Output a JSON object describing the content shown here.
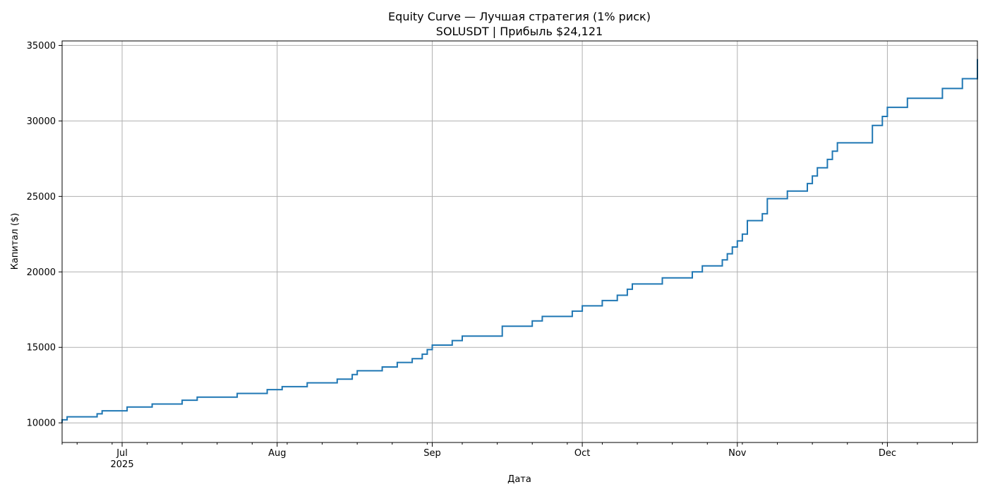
{
  "chart_data": {
    "type": "line",
    "title": "Equity Curve — Лучшая стратегия (1% риск)",
    "subtitle": "SOLUSDT | Прибыль $24,121",
    "xlabel": "Дата",
    "ylabel": "Капитал ($)",
    "xlim": [
      "2025-06-19",
      "2025-12-19"
    ],
    "ylim": [
      8700,
      35300
    ],
    "grid": true,
    "line_color": "#1f77b4",
    "y_ticks": [
      10000,
      15000,
      20000,
      25000,
      30000,
      35000
    ],
    "y_tick_labels": [
      "10000",
      "15000",
      "20000",
      "25000",
      "30000",
      "35000"
    ],
    "x_ticks": [
      {
        "date": "2025-07-01",
        "label": "Jul",
        "sublabel": "2025"
      },
      {
        "date": "2025-08-01",
        "label": "Aug",
        "sublabel": ""
      },
      {
        "date": "2025-09-01",
        "label": "Sep",
        "sublabel": ""
      },
      {
        "date": "2025-10-01",
        "label": "Oct",
        "sublabel": ""
      },
      {
        "date": "2025-11-01",
        "label": "Nov",
        "sublabel": ""
      },
      {
        "date": "2025-12-01",
        "label": "Dec",
        "sublabel": ""
      }
    ],
    "x_minor_ticks": [
      "2025-06-19",
      "2025-06-22",
      "2025-06-29",
      "2025-07-06",
      "2025-07-13",
      "2025-07-20",
      "2025-07-27",
      "2025-08-03",
      "2025-08-10",
      "2025-08-17",
      "2025-08-24",
      "2025-08-31",
      "2025-09-07",
      "2025-09-14",
      "2025-09-21",
      "2025-09-28",
      "2025-10-05",
      "2025-10-12",
      "2025-10-19",
      "2025-10-26",
      "2025-11-02",
      "2025-11-09",
      "2025-11-16",
      "2025-11-23",
      "2025-11-30",
      "2025-12-07",
      "2025-12-14"
    ],
    "series": [
      {
        "points": [
          [
            "2025-06-19",
            10000
          ],
          [
            "2025-06-19",
            10200
          ],
          [
            "2025-06-20",
            10200
          ],
          [
            "2025-06-20",
            10400
          ],
          [
            "2025-06-26",
            10400
          ],
          [
            "2025-06-26",
            10600
          ],
          [
            "2025-06-27",
            10600
          ],
          [
            "2025-06-27",
            10800
          ],
          [
            "2025-07-02",
            10800
          ],
          [
            "2025-07-02",
            11050
          ],
          [
            "2025-07-07",
            11050
          ],
          [
            "2025-07-07",
            11250
          ],
          [
            "2025-07-13",
            11250
          ],
          [
            "2025-07-13",
            11500
          ],
          [
            "2025-07-16",
            11500
          ],
          [
            "2025-07-16",
            11700
          ],
          [
            "2025-07-24",
            11700
          ],
          [
            "2025-07-24",
            11950
          ],
          [
            "2025-07-30",
            11950
          ],
          [
            "2025-07-30",
            12200
          ],
          [
            "2025-08-02",
            12200
          ],
          [
            "2025-08-02",
            12400
          ],
          [
            "2025-08-07",
            12400
          ],
          [
            "2025-08-07",
            12650
          ],
          [
            "2025-08-13",
            12650
          ],
          [
            "2025-08-13",
            12900
          ],
          [
            "2025-08-16",
            12900
          ],
          [
            "2025-08-16",
            13200
          ],
          [
            "2025-08-17",
            13200
          ],
          [
            "2025-08-17",
            13450
          ],
          [
            "2025-08-22",
            13450
          ],
          [
            "2025-08-22",
            13700
          ],
          [
            "2025-08-25",
            13700
          ],
          [
            "2025-08-25",
            14000
          ],
          [
            "2025-08-28",
            14000
          ],
          [
            "2025-08-28",
            14250
          ],
          [
            "2025-08-30",
            14250
          ],
          [
            "2025-08-30",
            14550
          ],
          [
            "2025-08-31",
            14550
          ],
          [
            "2025-08-31",
            14850
          ],
          [
            "2025-09-01",
            14850
          ],
          [
            "2025-09-01",
            15150
          ],
          [
            "2025-09-05",
            15150
          ],
          [
            "2025-09-05",
            15450
          ],
          [
            "2025-09-07",
            15450
          ],
          [
            "2025-09-07",
            15750
          ],
          [
            "2025-09-15",
            15750
          ],
          [
            "2025-09-15",
            16050
          ],
          [
            "2025-09-15",
            16400
          ],
          [
            "2025-09-21",
            16400
          ],
          [
            "2025-09-21",
            16750
          ],
          [
            "2025-09-23",
            16750
          ],
          [
            "2025-09-23",
            17050
          ],
          [
            "2025-09-29",
            17050
          ],
          [
            "2025-09-29",
            17400
          ],
          [
            "2025-10-01",
            17400
          ],
          [
            "2025-10-01",
            17750
          ],
          [
            "2025-10-05",
            17750
          ],
          [
            "2025-10-05",
            18100
          ],
          [
            "2025-10-08",
            18100
          ],
          [
            "2025-10-08",
            18450
          ],
          [
            "2025-10-10",
            18450
          ],
          [
            "2025-10-10",
            18850
          ],
          [
            "2025-10-11",
            18850
          ],
          [
            "2025-10-11",
            19200
          ],
          [
            "2025-10-17",
            19200
          ],
          [
            "2025-10-17",
            19600
          ],
          [
            "2025-10-23",
            19600
          ],
          [
            "2025-10-23",
            20000
          ],
          [
            "2025-10-25",
            20000
          ],
          [
            "2025-10-25",
            20400
          ],
          [
            "2025-10-29",
            20400
          ],
          [
            "2025-10-29",
            20800
          ],
          [
            "2025-10-30",
            20800
          ],
          [
            "2025-10-30",
            21200
          ],
          [
            "2025-10-31",
            21200
          ],
          [
            "2025-10-31",
            21650
          ],
          [
            "2025-11-01",
            21650
          ],
          [
            "2025-11-01",
            22050
          ],
          [
            "2025-11-02",
            22050
          ],
          [
            "2025-11-02",
            22500
          ],
          [
            "2025-11-03",
            22500
          ],
          [
            "2025-11-03",
            22950
          ],
          [
            "2025-11-03",
            23400
          ],
          [
            "2025-11-06",
            23400
          ],
          [
            "2025-11-06",
            23850
          ],
          [
            "2025-11-07",
            23850
          ],
          [
            "2025-11-07",
            24350
          ],
          [
            "2025-11-07",
            24850
          ],
          [
            "2025-11-11",
            24850
          ],
          [
            "2025-11-11",
            25350
          ],
          [
            "2025-11-15",
            25350
          ],
          [
            "2025-11-15",
            25850
          ],
          [
            "2025-11-16",
            25850
          ],
          [
            "2025-11-16",
            26350
          ],
          [
            "2025-11-17",
            26350
          ],
          [
            "2025-11-17",
            26900
          ],
          [
            "2025-11-19",
            26900
          ],
          [
            "2025-11-19",
            27450
          ],
          [
            "2025-11-20",
            27450
          ],
          [
            "2025-11-20",
            28000
          ],
          [
            "2025-11-21",
            28000
          ],
          [
            "2025-11-21",
            28550
          ],
          [
            "2025-11-28",
            28550
          ],
          [
            "2025-11-28",
            29150
          ],
          [
            "2025-11-28",
            29700
          ],
          [
            "2025-11-30",
            29700
          ],
          [
            "2025-11-30",
            30300
          ],
          [
            "2025-12-01",
            30300
          ],
          [
            "2025-12-01",
            30900
          ],
          [
            "2025-12-05",
            30900
          ],
          [
            "2025-12-05",
            31500
          ],
          [
            "2025-12-12",
            31500
          ],
          [
            "2025-12-12",
            32150
          ],
          [
            "2025-12-16",
            32150
          ],
          [
            "2025-12-16",
            32800
          ],
          [
            "2025-12-19",
            32800
          ],
          [
            "2025-12-19",
            33450
          ],
          [
            "2025-12-19",
            34100
          ],
          [
            "2025-12-19",
            34100
          ]
        ]
      }
    ]
  }
}
